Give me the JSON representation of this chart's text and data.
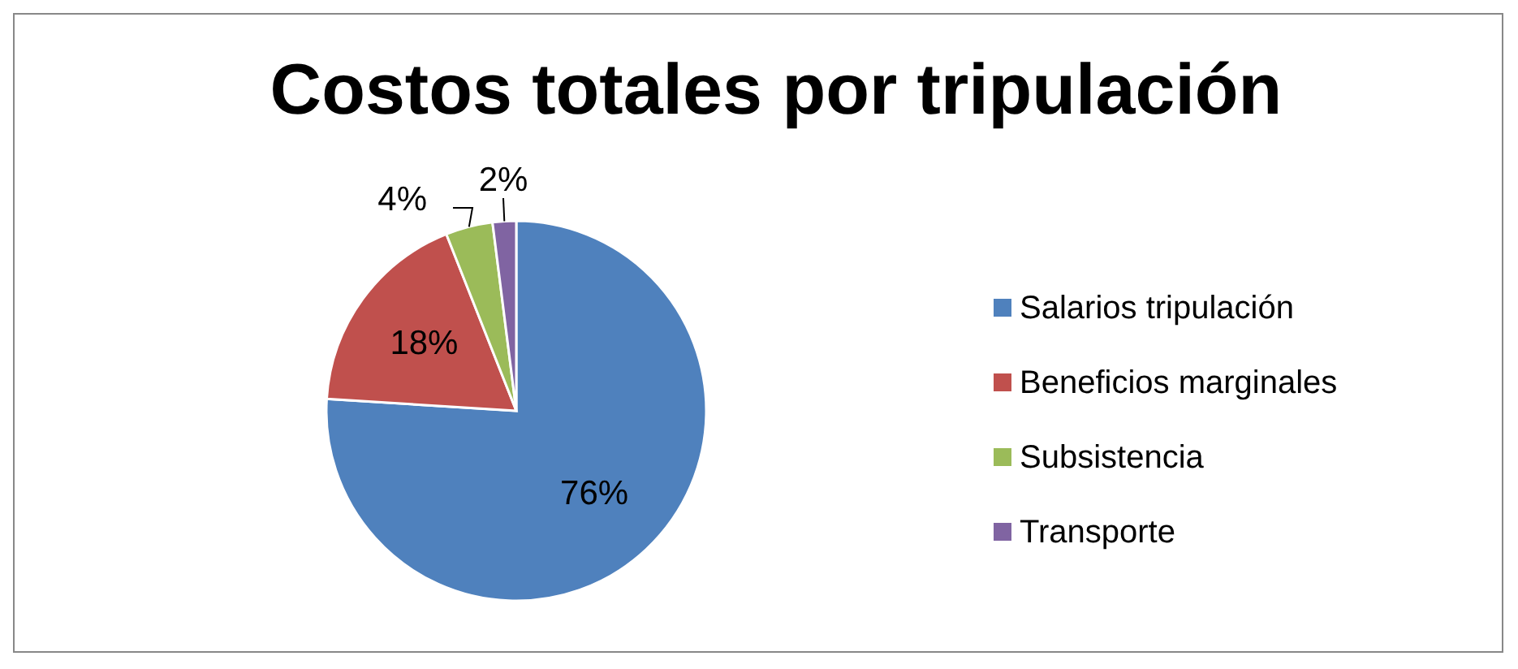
{
  "chart_data": {
    "type": "pie",
    "title": "Costos totales por tripulación",
    "categories": [
      "Salarios tripulación",
      "Beneficios marginales",
      "Subsistencia",
      "Transporte"
    ],
    "values": [
      76,
      18,
      4,
      2
    ],
    "colors": [
      "#4f81bd",
      "#c0504d",
      "#9bbb59",
      "#8064a2"
    ],
    "value_labels": [
      "76%",
      "18%",
      "4%",
      "2%"
    ],
    "legend": "right"
  }
}
